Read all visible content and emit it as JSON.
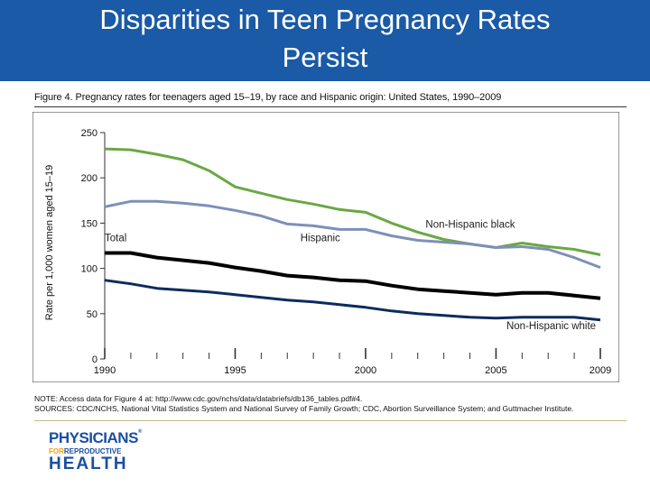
{
  "slide": {
    "title_line1": "Disparities in Teen Pregnancy Rates",
    "title_line2": "Persist"
  },
  "figure": {
    "caption": "Figure 4. Pregnancy rates for teenagers aged 15–19, by race and Hispanic origin: United States, 1990–2009",
    "note": "NOTE: Access data for Figure 4 at: http://www.cdc.gov/nchs/data/databriefs/db136_tables.pdf#4.",
    "sources": "SOURCES: CDC/NCHS, National Vital Statistics System and National Survey of Family Growth; CDC, Abortion Surveillance System; and Guttmacher Institute."
  },
  "logo": {
    "line1": "PHYSICIANS",
    "for": "FOR",
    "reproductive": "REPRODUCTIVE",
    "line3": "HEALTH"
  },
  "chart_data": {
    "type": "line",
    "ylabel": "Rate per 1,000 women aged 15–19",
    "xlabel": "",
    "ylim": [
      0,
      250
    ],
    "xlim": [
      1990,
      2009
    ],
    "yticks": [
      "0",
      "50",
      "100",
      "150",
      "200",
      "250"
    ],
    "xticks": [
      "1990",
      "1995",
      "2000",
      "2005",
      "2009"
    ],
    "grid": false,
    "x": [
      1990,
      1991,
      1992,
      1993,
      1994,
      1995,
      1996,
      1997,
      1998,
      1999,
      2000,
      2001,
      2002,
      2003,
      2004,
      2005,
      2006,
      2007,
      2008,
      2009
    ],
    "series": [
      {
        "name": "Non-Hispanic black",
        "color": "#6aa843",
        "width": 3,
        "values": [
          232,
          231,
          226,
          220,
          208,
          190,
          183,
          176,
          171,
          165,
          162,
          150,
          140,
          132,
          127,
          123,
          128,
          124,
          121,
          115
        ]
      },
      {
        "name": "Hispanic",
        "color": "#7d90b8",
        "width": 3,
        "values": [
          168,
          174,
          174,
          172,
          169,
          164,
          158,
          149,
          147,
          143,
          143,
          136,
          131,
          129,
          127,
          123,
          124,
          121,
          112,
          101
        ]
      },
      {
        "name": "Total",
        "color": "#000000",
        "width": 4,
        "values": [
          117,
          117,
          112,
          109,
          106,
          101,
          97,
          92,
          90,
          87,
          86,
          81,
          77,
          75,
          73,
          71,
          73,
          73,
          70,
          67
        ]
      },
      {
        "name": "Non-Hispanic white",
        "color": "#0d2b5e",
        "width": 3,
        "values": [
          87,
          83,
          78,
          76,
          74,
          71,
          68,
          65,
          63,
          60,
          57,
          53,
          50,
          48,
          46,
          45,
          46,
          46,
          46,
          43
        ]
      }
    ],
    "series_labels": [
      {
        "text": "Non-Hispanic black",
        "x": 2002.3,
        "y": 145
      },
      {
        "text": "Hispanic",
        "x": 1997.5,
        "y": 130
      },
      {
        "text": "Total",
        "x": 1990,
        "y": 130
      },
      {
        "text": "Non-Hispanic white",
        "x": 2005.4,
        "y": 33
      }
    ]
  }
}
